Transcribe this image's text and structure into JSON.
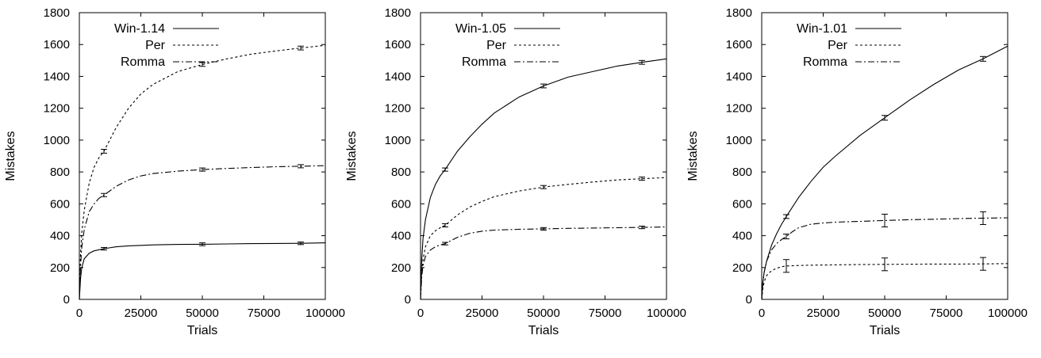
{
  "chart_data": [
    {
      "type": "line",
      "xlabel": "Trials",
      "ylabel": "Mistakes",
      "xlim": [
        0,
        100000
      ],
      "ylim": [
        0,
        1800
      ],
      "xticks": [
        "0",
        "25000",
        "50000",
        "75000",
        "100000"
      ],
      "yticks": [
        "0",
        "200",
        "400",
        "600",
        "800",
        "1000",
        "1200",
        "1400",
        "1600",
        "1800"
      ],
      "legend_position": "top-left",
      "series": [
        {
          "name": "Win-1.14",
          "style": "solid",
          "x": [
            0,
            500,
            1000,
            2000,
            4000,
            6000,
            10000,
            15000,
            20000,
            30000,
            40000,
            50000,
            60000,
            70000,
            80000,
            90000,
            100000
          ],
          "y": [
            0,
            130,
            200,
            255,
            290,
            305,
            318,
            330,
            336,
            342,
            345,
            346,
            348,
            350,
            351,
            352,
            355
          ],
          "errorbars": [
            {
              "x": 10000,
              "y": 318,
              "err": 8
            },
            {
              "x": 50000,
              "y": 346,
              "err": 9
            },
            {
              "x": 90000,
              "y": 352,
              "err": 8
            }
          ]
        },
        {
          "name": "Per",
          "style": "dashed",
          "x": [
            0,
            500,
            1000,
            2000,
            4000,
            6000,
            8000,
            10000,
            15000,
            20000,
            25000,
            30000,
            40000,
            50000,
            60000,
            70000,
            80000,
            90000,
            100000
          ],
          "y": [
            0,
            280,
            420,
            560,
            730,
            830,
            890,
            930,
            1080,
            1200,
            1290,
            1350,
            1430,
            1475,
            1510,
            1540,
            1560,
            1578,
            1595
          ],
          "errorbars": [
            {
              "x": 10000,
              "y": 930,
              "err": 12
            },
            {
              "x": 50000,
              "y": 1475,
              "err": 12
            },
            {
              "x": 90000,
              "y": 1578,
              "err": 12
            }
          ]
        },
        {
          "name": "Romma",
          "style": "dash-dot",
          "x": [
            0,
            500,
            1000,
            2000,
            4000,
            6000,
            8000,
            10000,
            15000,
            20000,
            25000,
            30000,
            40000,
            50000,
            60000,
            70000,
            80000,
            90000,
            100000
          ],
          "y": [
            0,
            210,
            330,
            440,
            550,
            600,
            635,
            655,
            710,
            750,
            775,
            790,
            805,
            815,
            822,
            828,
            833,
            836,
            840
          ],
          "errorbars": [
            {
              "x": 10000,
              "y": 655,
              "err": 10
            },
            {
              "x": 50000,
              "y": 815,
              "err": 10
            },
            {
              "x": 90000,
              "y": 836,
              "err": 10
            }
          ]
        }
      ]
    },
    {
      "type": "line",
      "xlabel": "Trials",
      "ylabel": "Mistakes",
      "xlim": [
        0,
        100000
      ],
      "ylim": [
        0,
        1800
      ],
      "xticks": [
        "0",
        "25000",
        "50000",
        "75000",
        "100000"
      ],
      "yticks": [
        "0",
        "200",
        "400",
        "600",
        "800",
        "1000",
        "1200",
        "1400",
        "1600",
        "1800"
      ],
      "legend_position": "top-left",
      "series": [
        {
          "name": "Win-1.05",
          "style": "solid",
          "x": [
            0,
            500,
            1000,
            2000,
            4000,
            6000,
            8000,
            10000,
            15000,
            20000,
            25000,
            30000,
            40000,
            50000,
            60000,
            70000,
            80000,
            90000,
            100000
          ],
          "y": [
            0,
            250,
            380,
            500,
            640,
            720,
            775,
            815,
            930,
            1020,
            1100,
            1170,
            1270,
            1340,
            1395,
            1430,
            1465,
            1488,
            1510
          ],
          "errorbars": [
            {
              "x": 10000,
              "y": 815,
              "err": 10
            },
            {
              "x": 50000,
              "y": 1340,
              "err": 12
            },
            {
              "x": 90000,
              "y": 1488,
              "err": 12
            }
          ]
        },
        {
          "name": "Per",
          "style": "dashed",
          "x": [
            0,
            500,
            1000,
            2000,
            4000,
            6000,
            8000,
            10000,
            15000,
            20000,
            25000,
            30000,
            40000,
            50000,
            60000,
            70000,
            80000,
            90000,
            100000
          ],
          "y": [
            0,
            170,
            250,
            330,
            400,
            430,
            450,
            465,
            530,
            580,
            615,
            645,
            680,
            705,
            722,
            737,
            750,
            758,
            765
          ],
          "errorbars": [
            {
              "x": 10000,
              "y": 465,
              "err": 10
            },
            {
              "x": 50000,
              "y": 705,
              "err": 10
            },
            {
              "x": 90000,
              "y": 758,
              "err": 10
            }
          ]
        },
        {
          "name": "Romma",
          "style": "dash-dot",
          "x": [
            0,
            500,
            1000,
            2000,
            4000,
            6000,
            8000,
            10000,
            15000,
            20000,
            25000,
            30000,
            40000,
            50000,
            60000,
            70000,
            80000,
            90000,
            100000
          ],
          "y": [
            0,
            140,
            210,
            270,
            310,
            330,
            342,
            350,
            390,
            415,
            428,
            435,
            440,
            443,
            446,
            448,
            450,
            452,
            455
          ],
          "errorbars": [
            {
              "x": 10000,
              "y": 350,
              "err": 8
            },
            {
              "x": 50000,
              "y": 443,
              "err": 8
            },
            {
              "x": 90000,
              "y": 452,
              "err": 8
            }
          ]
        }
      ]
    },
    {
      "type": "line",
      "xlabel": "Trials",
      "ylabel": "Mistakes",
      "xlim": [
        0,
        100000
      ],
      "ylim": [
        0,
        1800
      ],
      "xticks": [
        "0",
        "25000",
        "50000",
        "75000",
        "100000"
      ],
      "yticks": [
        "0",
        "200",
        "400",
        "600",
        "800",
        "1000",
        "1200",
        "1400",
        "1600",
        "1800"
      ],
      "legend_position": "top-left",
      "series": [
        {
          "name": "Win-1.01",
          "style": "solid",
          "x": [
            0,
            500,
            1000,
            2000,
            4000,
            6000,
            8000,
            10000,
            15000,
            20000,
            25000,
            30000,
            40000,
            50000,
            60000,
            70000,
            80000,
            90000,
            100000
          ],
          "y": [
            0,
            110,
            170,
            240,
            340,
            410,
            470,
            520,
            640,
            740,
            830,
            900,
            1030,
            1140,
            1250,
            1350,
            1440,
            1510,
            1590
          ],
          "errorbars": [
            {
              "x": 10000,
              "y": 520,
              "err": 12
            },
            {
              "x": 50000,
              "y": 1140,
              "err": 15
            },
            {
              "x": 90000,
              "y": 1510,
              "err": 15
            }
          ]
        },
        {
          "name": "Per",
          "style": "dashed",
          "x": [
            0,
            500,
            1000,
            2000,
            4000,
            6000,
            8000,
            10000,
            15000,
            20000,
            30000,
            40000,
            50000,
            60000,
            70000,
            80000,
            90000,
            100000
          ],
          "y": [
            0,
            70,
            110,
            150,
            180,
            195,
            205,
            210,
            213,
            215,
            217,
            219,
            220,
            221,
            222,
            222,
            223,
            225
          ],
          "errorbars": [
            {
              "x": 10000,
              "y": 210,
              "err": 40
            },
            {
              "x": 50000,
              "y": 220,
              "err": 40
            },
            {
              "x": 90000,
              "y": 223,
              "err": 40
            }
          ]
        },
        {
          "name": "Romma",
          "style": "dash-dot",
          "x": [
            0,
            500,
            1000,
            2000,
            4000,
            6000,
            8000,
            10000,
            12500,
            15000,
            20000,
            25000,
            30000,
            40000,
            50000,
            60000,
            70000,
            80000,
            90000,
            100000
          ],
          "y": [
            0,
            110,
            170,
            240,
            310,
            350,
            375,
            395,
            425,
            450,
            472,
            480,
            485,
            490,
            495,
            500,
            503,
            507,
            510,
            512
          ],
          "errorbars": [
            {
              "x": 10000,
              "y": 395,
              "err": 15
            },
            {
              "x": 50000,
              "y": 495,
              "err": 40
            },
            {
              "x": 90000,
              "y": 510,
              "err": 40
            }
          ]
        }
      ]
    }
  ]
}
